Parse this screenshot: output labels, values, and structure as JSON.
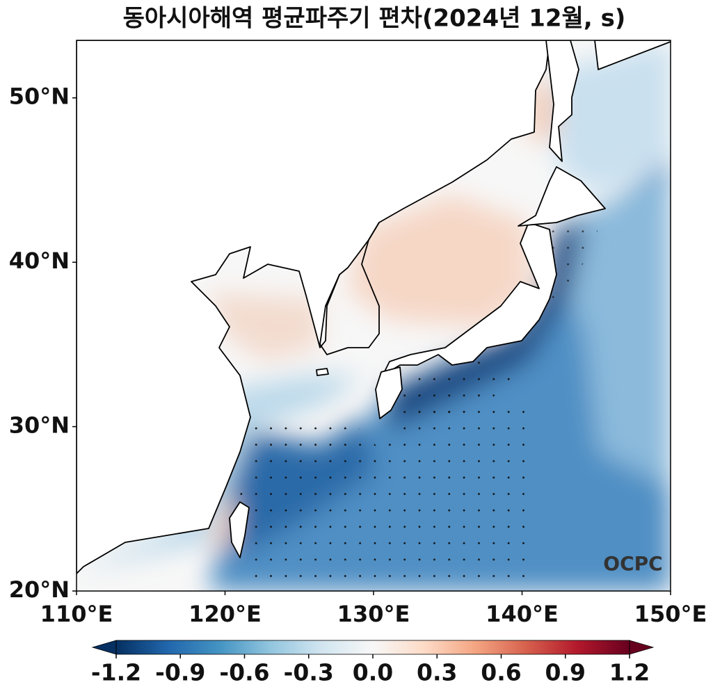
{
  "title": "동아시아해역 평균파주기 편차(2024년 12월, s)",
  "map": {
    "xlim": [
      110,
      150
    ],
    "ylim": [
      20,
      53.5
    ],
    "xticks": [
      {
        "value": 110,
        "label": "110°E"
      },
      {
        "value": 120,
        "label": "120°E"
      },
      {
        "value": 130,
        "label": "130°E"
      },
      {
        "value": 140,
        "label": "140°E"
      },
      {
        "value": 150,
        "label": "150°E"
      }
    ],
    "yticks": [
      {
        "value": 20,
        "label": "20°N"
      },
      {
        "value": 30,
        "label": "30°N"
      },
      {
        "value": 40,
        "label": "40°N"
      },
      {
        "value": 50,
        "label": "50°N"
      }
    ],
    "watermark": "OCPC"
  },
  "colorbar": {
    "range": [
      -1.2,
      1.2
    ],
    "extend": "both",
    "colors": [
      "#053061",
      "#2166ac",
      "#4393c3",
      "#92c5de",
      "#d1e5f0",
      "#f7f7f7",
      "#fddbc7",
      "#f4a582",
      "#d6604d",
      "#b2182b",
      "#67001f"
    ],
    "ticks": [
      -1.2,
      -0.9,
      -0.6,
      -0.3,
      {
        "value": 0,
        "label": "0.0"
      },
      0.3,
      0.6,
      0.9,
      1.2
    ]
  }
}
